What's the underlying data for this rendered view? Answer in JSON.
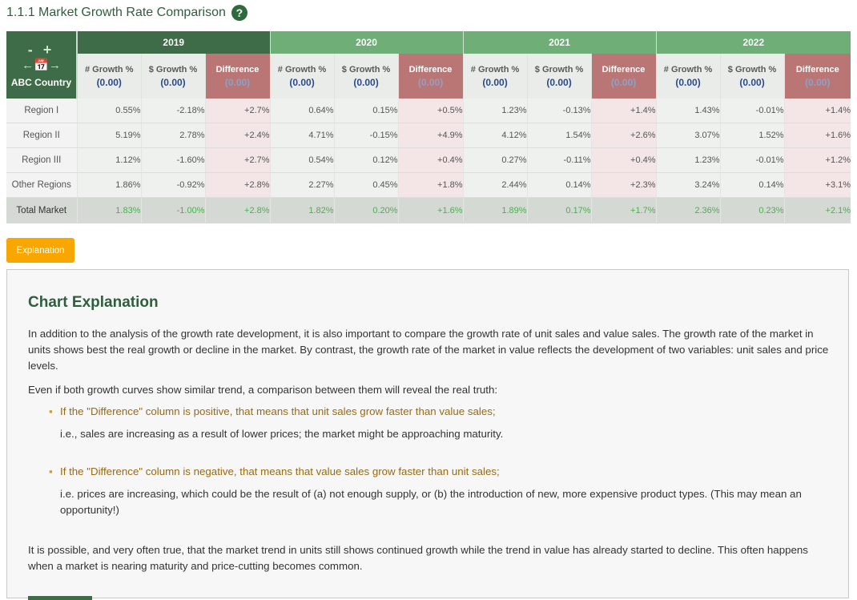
{
  "title": "1.1.1 Market Growth Rate Comparison",
  "help_icon": "?",
  "controls": {
    "zoom": "- +",
    "nav": "←📅→",
    "country": "ABC Country"
  },
  "years": [
    "2019",
    "2020",
    "2021",
    "2022"
  ],
  "subheaders": {
    "unit_growth": "# Growth %",
    "value_growth": "$ Growth %",
    "difference": "Difference",
    "zero": "(0.00)"
  },
  "rows": [
    {
      "label": "Region I",
      "cells": [
        "0.55%",
        "-2.18%",
        "+2.7%",
        "0.64%",
        "0.15%",
        "+0.5%",
        "1.23%",
        "-0.13%",
        "+1.4%",
        "1.43%",
        "-0.01%",
        "+1.4%"
      ]
    },
    {
      "label": "Region II",
      "cells": [
        "5.19%",
        "2.78%",
        "+2.4%",
        "4.71%",
        "-0.15%",
        "+4.9%",
        "4.12%",
        "1.54%",
        "+2.6%",
        "3.07%",
        "1.52%",
        "+1.6%"
      ]
    },
    {
      "label": "Region III",
      "cells": [
        "1.12%",
        "-1.60%",
        "+2.7%",
        "0.54%",
        "0.12%",
        "+0.4%",
        "0.27%",
        "-0.11%",
        "+0.4%",
        "1.23%",
        "-0.01%",
        "+1.2%"
      ]
    },
    {
      "label": "Other Regions",
      "cells": [
        "1.86%",
        "-0.92%",
        "+2.8%",
        "2.27%",
        "0.45%",
        "+1.8%",
        "2.44%",
        "0.14%",
        "+2.3%",
        "3.24%",
        "0.14%",
        "+3.1%"
      ]
    },
    {
      "label": "Total Market",
      "cells": [
        "1.83%",
        "-1.00%",
        "+2.8%",
        "1.82%",
        "0.20%",
        "+1.6%",
        "1.89%",
        "0.17%",
        "+1.7%",
        "2.36%",
        "0.23%",
        "+2.1%"
      ]
    }
  ],
  "explanation_button": "Explanation",
  "explanation": {
    "title": "Chart Explanation",
    "p1": "In addition to the analysis of the growth rate development, it is also important to compare the growth rate of unit sales and value sales. The growth rate of the market in units shows best the real growth or decline in the market. By contrast, the growth rate of the market in value reflects the development of two variables: unit sales and price levels.",
    "p2": "Even if both growth curves show similar trend, a comparison between them will reveal the real truth:",
    "b1_head": "If the \"Difference\" column is positive, that means that unit sales grow  faster than value sales;",
    "b1_detail": "i.e., sales are increasing as a result of lower prices; the market might be approaching maturity.",
    "b2_head": "If the \"Difference\" column is negative, that means that value sales grow faster than unit sales;",
    "b2_detail": "i.e. prices are increasing, which could be the result of (a) not enough supply, or (b) the introduction of new, more expensive product types. (This may mean an opportunity!)",
    "p3": "It is possible, and very often true, that the market trend in units still shows continued growth while the trend in value has already started to decline. This often happens when a market is nearing maturity and price-cutting becomes common."
  }
}
